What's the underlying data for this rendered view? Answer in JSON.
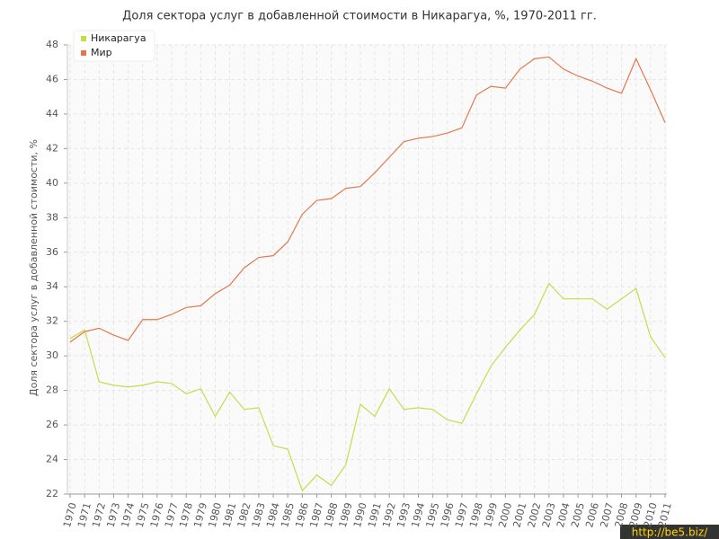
{
  "chart_data": {
    "type": "line",
    "title": "Доля сектора услуг в добавленной стоимости в Никарагуа, %, 1970-2011 гг.",
    "y_label": "Доля сектора услуг в добавленной стоимости, %",
    "categories": [
      "1970",
      "1971",
      "1972",
      "1973",
      "1974",
      "1975",
      "1976",
      "1977",
      "1978",
      "1979",
      "1980",
      "1981",
      "1982",
      "1983",
      "1984",
      "1985",
      "1986",
      "1987",
      "1988",
      "1989",
      "1990",
      "1991",
      "1992",
      "1993",
      "1994",
      "1995",
      "1996",
      "1997",
      "1998",
      "1999",
      "2000",
      "2001",
      "2002",
      "2003",
      "2004",
      "2005",
      "2006",
      "2007",
      "2008",
      "2009",
      "2010",
      "2011"
    ],
    "series": [
      {
        "name": "Никарагуа",
        "color": "#c5dc4a",
        "values": [
          31.0,
          31.5,
          28.5,
          28.3,
          28.2,
          28.3,
          28.5,
          28.4,
          27.8,
          28.1,
          26.5,
          27.9,
          26.9,
          27.0,
          24.8,
          24.6,
          22.2,
          23.1,
          22.5,
          23.7,
          27.2,
          26.5,
          28.1,
          26.9,
          27.0,
          26.9,
          26.3,
          26.1,
          27.8,
          29.4,
          30.5,
          31.5,
          32.4,
          34.2,
          33.3,
          33.3,
          33.3,
          32.7,
          33.3,
          33.9,
          31.1,
          29.9
        ]
      },
      {
        "name": "Мир",
        "color": "#e07a4e",
        "values": [
          30.8,
          31.4,
          31.6,
          31.2,
          30.9,
          32.1,
          32.1,
          32.4,
          32.8,
          32.9,
          33.6,
          34.1,
          35.1,
          35.7,
          35.8,
          36.6,
          38.2,
          39.0,
          39.1,
          39.7,
          39.8,
          40.6,
          41.5,
          42.4,
          42.6,
          42.7,
          42.9,
          43.2,
          45.1,
          45.6,
          45.5,
          46.6,
          47.2,
          47.3,
          46.6,
          46.2,
          45.9,
          45.5,
          45.2,
          47.2,
          45.4,
          43.5
        ]
      }
    ],
    "ylim": [
      22,
      48
    ],
    "yticks": [
      22,
      24,
      26,
      28,
      30,
      32,
      34,
      36,
      38,
      40,
      42,
      44,
      46,
      48
    ],
    "grid": true,
    "legend": "top-left",
    "watermark": "http://be5.biz/"
  }
}
